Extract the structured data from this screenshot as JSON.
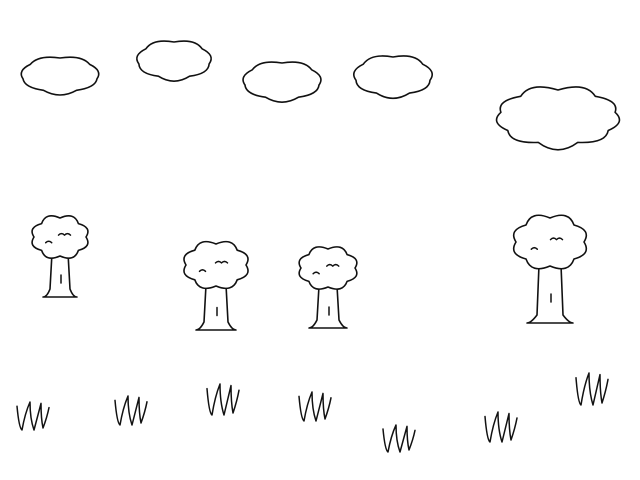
{
  "drawing": {
    "background_color": "#ffffff",
    "ink_color": "#111111",
    "clouds": [
      {
        "name": "cloud-1"
      },
      {
        "name": "cloud-2"
      },
      {
        "name": "cloud-3"
      },
      {
        "name": "cloud-4"
      },
      {
        "name": "cloud-5"
      }
    ],
    "trees": [
      {
        "name": "tree-1"
      },
      {
        "name": "tree-2"
      },
      {
        "name": "tree-3"
      },
      {
        "name": "tree-4"
      }
    ],
    "grass_tufts": [
      {
        "name": "grass-tuft-1"
      },
      {
        "name": "grass-tuft-2"
      },
      {
        "name": "grass-tuft-3"
      },
      {
        "name": "grass-tuft-4"
      },
      {
        "name": "grass-tuft-5"
      },
      {
        "name": "grass-tuft-6"
      },
      {
        "name": "grass-tuft-7"
      }
    ]
  }
}
